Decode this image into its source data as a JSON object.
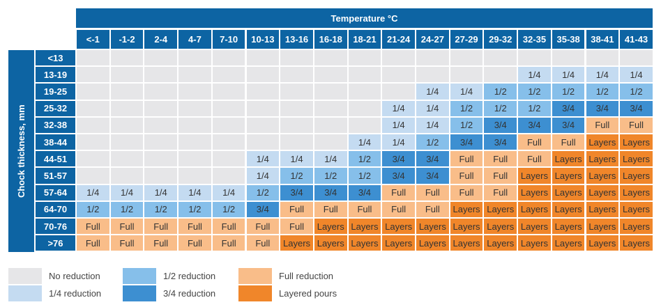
{
  "chart_data": {
    "type": "heatmap",
    "title": "Temperature °C",
    "ylabel": "Chock thickness, mm",
    "columns": [
      "<-1",
      "-1-2",
      "2-4",
      "4-7",
      "7-10",
      "10-13",
      "13-16",
      "16-18",
      "18-21",
      "21-24",
      "24-27",
      "27-29",
      "29-32",
      "32-35",
      "35-38",
      "38-41",
      "41-43"
    ],
    "rows": [
      "<13",
      "13-19",
      "19-25",
      "25-32",
      "32-38",
      "38-44",
      "44-51",
      "51-57",
      "57-64",
      "64-70",
      "70-76",
      ">76"
    ],
    "cells": [
      [
        "",
        "",
        "",
        "",
        "",
        "",
        "",
        "",
        "",
        "",
        "",
        "",
        "",
        "",
        "",
        "",
        ""
      ],
      [
        "",
        "",
        "",
        "",
        "",
        "",
        "",
        "",
        "",
        "",
        "",
        "",
        "",
        "1/4",
        "1/4",
        "1/4",
        "1/4"
      ],
      [
        "",
        "",
        "",
        "",
        "",
        "",
        "",
        "",
        "",
        "",
        "1/4",
        "1/4",
        "1/2",
        "1/2",
        "1/2",
        "1/2",
        "1/2"
      ],
      [
        "",
        "",
        "",
        "",
        "",
        "",
        "",
        "",
        "",
        "1/4",
        "1/4",
        "1/2",
        "1/2",
        "1/2",
        "3/4",
        "3/4",
        "3/4"
      ],
      [
        "",
        "",
        "",
        "",
        "",
        "",
        "",
        "",
        "",
        "1/4",
        "1/4",
        "1/2",
        "3/4",
        "3/4",
        "3/4",
        "Full",
        "Full"
      ],
      [
        "",
        "",
        "",
        "",
        "",
        "",
        "",
        "",
        "1/4",
        "1/4",
        "1/2",
        "3/4",
        "3/4",
        "Full",
        "Full",
        "Layers",
        "Layers"
      ],
      [
        "",
        "",
        "",
        "",
        "",
        "1/4",
        "1/4",
        "1/4",
        "1/2",
        "3/4",
        "3/4",
        "Full",
        "Full",
        "Full",
        "Layers",
        "Layers",
        "Layers"
      ],
      [
        "",
        "",
        "",
        "",
        "",
        "1/4",
        "1/2",
        "1/2",
        "1/2",
        "3/4",
        "3/4",
        "Full",
        "Full",
        "Layers",
        "Layers",
        "Layers",
        "Layers"
      ],
      [
        "1/4",
        "1/4",
        "1/4",
        "1/4",
        "1/4",
        "1/2",
        "3/4",
        "3/4",
        "3/4",
        "Full",
        "Full",
        "Full",
        "Full",
        "Layers",
        "Layers",
        "Layers",
        "Layers"
      ],
      [
        "1/2",
        "1/2",
        "1/2",
        "1/2",
        "1/2",
        "3/4",
        "Full",
        "Full",
        "Full",
        "Full",
        "Full",
        "Layers",
        "Layers",
        "Layers",
        "Layers",
        "Layers",
        "Layers"
      ],
      [
        "Full",
        "Full",
        "Full",
        "Full",
        "Full",
        "Full",
        "Full",
        "Layers",
        "Layers",
        "Layers",
        "Layers",
        "Layers",
        "Layers",
        "Layers",
        "Layers",
        "Layers",
        "Layers"
      ],
      [
        "Full",
        "Full",
        "Full",
        "Full",
        "Full",
        "Full",
        "Layers",
        "Layers",
        "Layers",
        "Layers",
        "Layers",
        "Layers",
        "Layers",
        "Layers",
        "Layers",
        "Layers",
        "Layers"
      ]
    ],
    "colors": {
      "": "#e6e6e8",
      "1/4": "#c4dbf1",
      "1/2": "#86bfea",
      "3/4": "#3d8fd1",
      "Full": "#f9bd89",
      "Layers": "#f0862a"
    },
    "header_color": "#0d64a3",
    "legend": [
      {
        "key": "",
        "label": "No reduction"
      },
      {
        "key": "1/4",
        "label": "1/4 reduction"
      },
      {
        "key": "1/2",
        "label": "1/2 reduction"
      },
      {
        "key": "3/4",
        "label": "3/4 reduction"
      },
      {
        "key": "Full",
        "label": "Full reduction"
      },
      {
        "key": "Layers",
        "label": "Layered pours"
      }
    ]
  }
}
